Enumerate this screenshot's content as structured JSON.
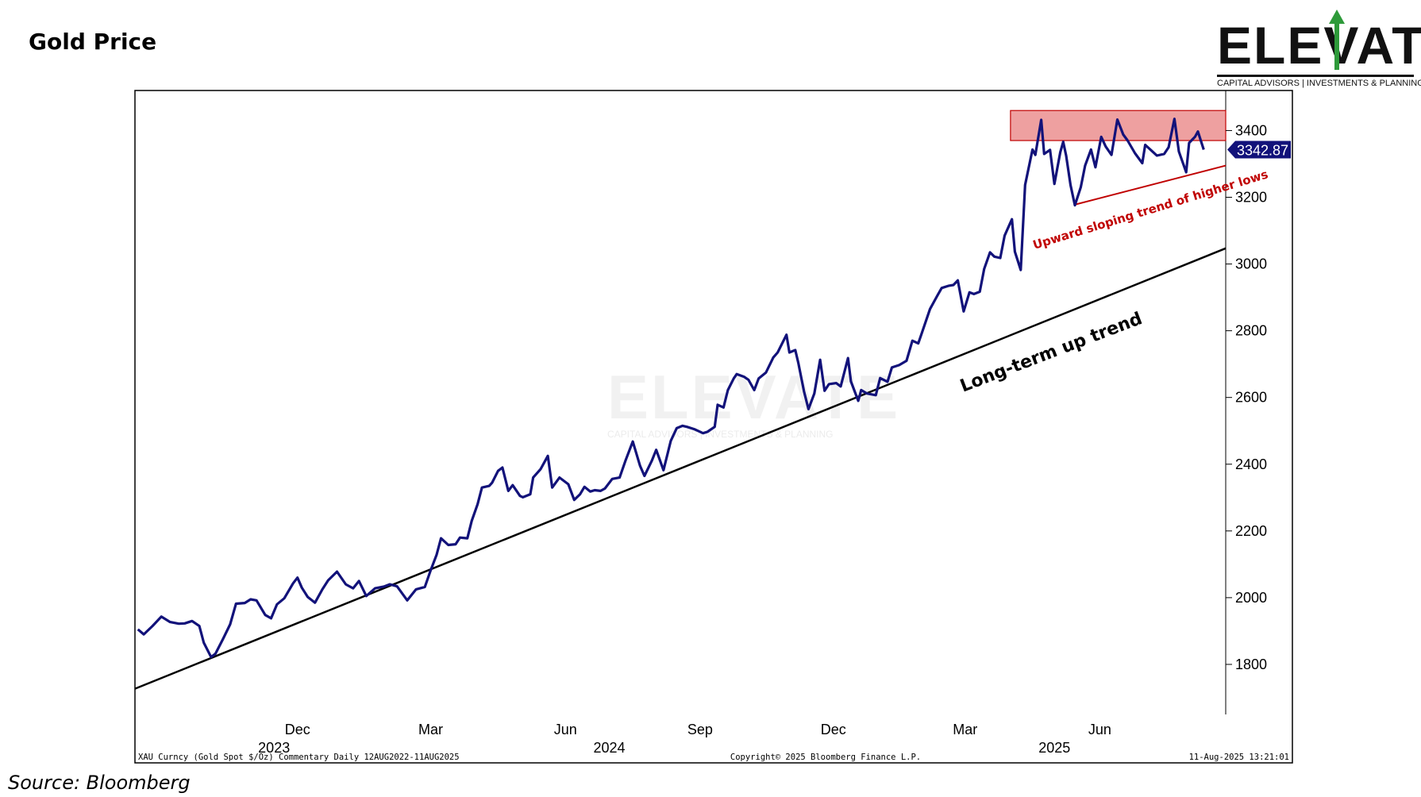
{
  "page": {
    "title": "Gold Price",
    "source": "Source: Bloomberg"
  },
  "logo": {
    "wordmark": "ELEVATE",
    "tagline": "CAPITAL ADVISORS | INVESTMENTS & PLANNING",
    "accent_color": "#2e9a3a"
  },
  "chart_data": {
    "type": "line",
    "series": [
      {
        "color": "#12127a",
        "points": [
          [
            "2023-08-14",
            1905
          ],
          [
            "2023-08-18",
            1890
          ],
          [
            "2023-08-24",
            1915
          ],
          [
            "2023-08-30",
            1943
          ],
          [
            "2023-09-05",
            1927
          ],
          [
            "2023-09-11",
            1922
          ],
          [
            "2023-09-15",
            1923
          ],
          [
            "2023-09-20",
            1930
          ],
          [
            "2023-09-25",
            1915
          ],
          [
            "2023-09-28",
            1865
          ],
          [
            "2023-10-03",
            1822
          ],
          [
            "2023-10-06",
            1832
          ],
          [
            "2023-10-11",
            1875
          ],
          [
            "2023-10-16",
            1920
          ],
          [
            "2023-10-20",
            1982
          ],
          [
            "2023-10-26",
            1984
          ],
          [
            "2023-10-30",
            1995
          ],
          [
            "2023-11-03",
            1992
          ],
          [
            "2023-11-09",
            1948
          ],
          [
            "2023-11-13",
            1938
          ],
          [
            "2023-11-17",
            1980
          ],
          [
            "2023-11-22",
            1998
          ],
          [
            "2023-11-28",
            2043
          ],
          [
            "2023-12-01",
            2060
          ],
          [
            "2023-12-04",
            2030
          ],
          [
            "2023-12-08",
            2002
          ],
          [
            "2023-12-13",
            1985
          ],
          [
            "2023-12-18",
            2025
          ],
          [
            "2023-12-22",
            2052
          ],
          [
            "2023-12-28",
            2078
          ],
          [
            "2024-01-03",
            2040
          ],
          [
            "2024-01-08",
            2028
          ],
          [
            "2024-01-12",
            2050
          ],
          [
            "2024-01-17",
            2005
          ],
          [
            "2024-01-23",
            2028
          ],
          [
            "2024-01-29",
            2033
          ],
          [
            "2024-02-02",
            2040
          ],
          [
            "2024-02-07",
            2034
          ],
          [
            "2024-02-14",
            1992
          ],
          [
            "2024-02-20",
            2025
          ],
          [
            "2024-02-26",
            2032
          ],
          [
            "2024-03-01",
            2082
          ],
          [
            "2024-03-05",
            2128
          ],
          [
            "2024-03-08",
            2178
          ],
          [
            "2024-03-13",
            2158
          ],
          [
            "2024-03-18",
            2160
          ],
          [
            "2024-03-21",
            2180
          ],
          [
            "2024-03-26",
            2178
          ],
          [
            "2024-03-29",
            2230
          ],
          [
            "2024-04-02",
            2280
          ],
          [
            "2024-04-05",
            2330
          ],
          [
            "2024-04-10",
            2335
          ],
          [
            "2024-04-12",
            2345
          ],
          [
            "2024-04-16",
            2380
          ],
          [
            "2024-04-19",
            2390
          ],
          [
            "2024-04-23",
            2320
          ],
          [
            "2024-04-26",
            2337
          ],
          [
            "2024-05-01",
            2305
          ],
          [
            "2024-05-03",
            2301
          ],
          [
            "2024-05-08",
            2310
          ],
          [
            "2024-05-10",
            2360
          ],
          [
            "2024-05-15",
            2385
          ],
          [
            "2024-05-20",
            2425
          ],
          [
            "2024-05-23",
            2330
          ],
          [
            "2024-05-28",
            2360
          ],
          [
            "2024-06-03",
            2340
          ],
          [
            "2024-06-07",
            2293
          ],
          [
            "2024-06-11",
            2310
          ],
          [
            "2024-06-14",
            2332
          ],
          [
            "2024-06-18",
            2318
          ],
          [
            "2024-06-21",
            2322
          ],
          [
            "2024-06-25",
            2320
          ],
          [
            "2024-06-28",
            2327
          ],
          [
            "2024-07-03",
            2356
          ],
          [
            "2024-07-08",
            2360
          ],
          [
            "2024-07-12",
            2410
          ],
          [
            "2024-07-17",
            2468
          ],
          [
            "2024-07-22",
            2395
          ],
          [
            "2024-07-25",
            2365
          ],
          [
            "2024-07-30",
            2410
          ],
          [
            "2024-08-02",
            2443
          ],
          [
            "2024-08-07",
            2382
          ],
          [
            "2024-08-12",
            2470
          ],
          [
            "2024-08-16",
            2508
          ],
          [
            "2024-08-20",
            2515
          ],
          [
            "2024-08-23",
            2512
          ],
          [
            "2024-08-28",
            2505
          ],
          [
            "2024-09-03",
            2493
          ],
          [
            "2024-09-06",
            2497
          ],
          [
            "2024-09-11",
            2512
          ],
          [
            "2024-09-13",
            2578
          ],
          [
            "2024-09-17",
            2570
          ],
          [
            "2024-09-20",
            2622
          ],
          [
            "2024-09-24",
            2657
          ],
          [
            "2024-09-26",
            2670
          ],
          [
            "2024-10-01",
            2662
          ],
          [
            "2024-10-04",
            2653
          ],
          [
            "2024-10-08",
            2622
          ],
          [
            "2024-10-11",
            2657
          ],
          [
            "2024-10-16",
            2675
          ],
          [
            "2024-10-21",
            2720
          ],
          [
            "2024-10-24",
            2735
          ],
          [
            "2024-10-30",
            2788
          ],
          [
            "2024-11-01",
            2735
          ],
          [
            "2024-11-05",
            2742
          ],
          [
            "2024-11-07",
            2705
          ],
          [
            "2024-11-11",
            2618
          ],
          [
            "2024-11-14",
            2565
          ],
          [
            "2024-11-18",
            2612
          ],
          [
            "2024-11-22",
            2713
          ],
          [
            "2024-11-25",
            2620
          ],
          [
            "2024-11-28",
            2640
          ],
          [
            "2024-12-03",
            2643
          ],
          [
            "2024-12-06",
            2633
          ],
          [
            "2024-12-11",
            2718
          ],
          [
            "2024-12-13",
            2648
          ],
          [
            "2024-12-18",
            2590
          ],
          [
            "2024-12-20",
            2622
          ],
          [
            "2024-12-24",
            2612
          ],
          [
            "2024-12-30",
            2607
          ],
          [
            "2025-01-02",
            2658
          ],
          [
            "2025-01-07",
            2647
          ],
          [
            "2025-01-10",
            2690
          ],
          [
            "2025-01-15",
            2697
          ],
          [
            "2025-01-20",
            2710
          ],
          [
            "2025-01-24",
            2770
          ],
          [
            "2025-01-28",
            2762
          ],
          [
            "2025-01-31",
            2800
          ],
          [
            "2025-02-05",
            2865
          ],
          [
            "2025-02-10",
            2905
          ],
          [
            "2025-02-13",
            2928
          ],
          [
            "2025-02-18",
            2935
          ],
          [
            "2025-02-21",
            2937
          ],
          [
            "2025-02-24",
            2951
          ],
          [
            "2025-02-28",
            2858
          ],
          [
            "2025-03-04",
            2915
          ],
          [
            "2025-03-07",
            2910
          ],
          [
            "2025-03-11",
            2917
          ],
          [
            "2025-03-14",
            2985
          ],
          [
            "2025-03-18",
            3035
          ],
          [
            "2025-03-21",
            3022
          ],
          [
            "2025-03-25",
            3018
          ],
          [
            "2025-03-28",
            3085
          ],
          [
            "2025-04-02",
            3134
          ],
          [
            "2025-04-04",
            3037
          ],
          [
            "2025-04-08",
            2982
          ],
          [
            "2025-04-11",
            3237
          ],
          [
            "2025-04-16",
            3343
          ],
          [
            "2025-04-18",
            3327
          ],
          [
            "2025-04-22",
            3432
          ],
          [
            "2025-04-24",
            3330
          ],
          [
            "2025-04-28",
            3342
          ],
          [
            "2025-05-01",
            3240
          ],
          [
            "2025-05-05",
            3335
          ],
          [
            "2025-05-07",
            3366
          ],
          [
            "2025-05-09",
            3325
          ],
          [
            "2025-05-12",
            3237
          ],
          [
            "2025-05-15",
            3176
          ],
          [
            "2025-05-19",
            3230
          ],
          [
            "2025-05-22",
            3295
          ],
          [
            "2025-05-26",
            3343
          ],
          [
            "2025-05-29",
            3290
          ],
          [
            "2025-06-02",
            3381
          ],
          [
            "2025-06-05",
            3352
          ],
          [
            "2025-06-09",
            3327
          ],
          [
            "2025-06-13",
            3433
          ],
          [
            "2025-06-17",
            3388
          ],
          [
            "2025-06-20",
            3370
          ],
          [
            "2025-06-25",
            3332
          ],
          [
            "2025-06-30",
            3302
          ],
          [
            "2025-07-02",
            3357
          ],
          [
            "2025-07-07",
            3337
          ],
          [
            "2025-07-10",
            3325
          ],
          [
            "2025-07-15",
            3330
          ],
          [
            "2025-07-18",
            3350
          ],
          [
            "2025-07-22",
            3435
          ],
          [
            "2025-07-25",
            3337
          ],
          [
            "2025-07-30",
            3275
          ],
          [
            "2025-08-01",
            3363
          ],
          [
            "2025-08-05",
            3381
          ],
          [
            "2025-08-07",
            3397
          ],
          [
            "2025-08-11",
            3342.87
          ]
        ]
      }
    ],
    "xlim": [
      "2023-08-12",
      "2025-08-26"
    ],
    "ylim": [
      1650,
      3520
    ],
    "y_ticks": [
      1800,
      2000,
      2200,
      2400,
      2600,
      2800,
      3000,
      3200,
      3400
    ],
    "x_month_ticks": [
      {
        "date": "2023-12-01",
        "label": "Dec"
      },
      {
        "date": "2024-03-01",
        "label": "Mar"
      },
      {
        "date": "2024-06-01",
        "label": "Jun"
      },
      {
        "date": "2024-09-01",
        "label": "Sep"
      },
      {
        "date": "2024-12-01",
        "label": "Dec"
      },
      {
        "date": "2025-03-01",
        "label": "Mar"
      },
      {
        "date": "2025-06-01",
        "label": "Jun"
      }
    ],
    "x_year_labels": [
      {
        "date": "2023-11-15",
        "label": "2023"
      },
      {
        "date": "2024-07-01",
        "label": "2024"
      },
      {
        "date": "2025-05-01",
        "label": "2025"
      }
    ],
    "last_value": {
      "date": "2025-08-11",
      "value": 3342.87,
      "label": "3342.87"
    },
    "resistance_zone": {
      "x_start": "2025-04-01",
      "x_end": "2025-08-26",
      "y_low": 3370,
      "y_high": 3460,
      "color": "#eea0a0"
    },
    "trendlines": [
      {
        "name": "long-term",
        "p1": [
          "2023-08-12",
          1727
        ],
        "p2": [
          "2025-08-26",
          3047
        ],
        "color": "#000000",
        "label": "Long-term up trend"
      },
      {
        "name": "higher-lows",
        "p1": [
          "2025-05-15",
          3178
        ],
        "p2": [
          "2025-08-26",
          3295
        ],
        "color": "#c00000",
        "label": "Upward sloping trend of higher lows"
      }
    ],
    "footer": {
      "left": "XAU Curncy (Gold Spot  $/Oz) Commentary  Daily 12AUG2022-11AUG2025",
      "center": "Copyright© 2025 Bloomberg Finance L.P.",
      "right": "11-Aug-2025 13:21:01"
    },
    "title": "Gold Price",
    "grid": false
  }
}
